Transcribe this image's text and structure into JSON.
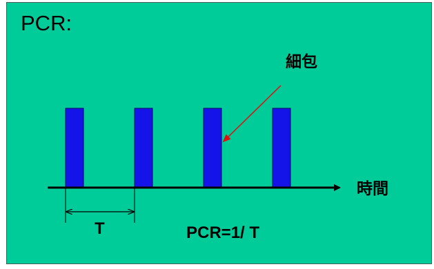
{
  "title": "PCR:",
  "cell_label": "細包",
  "time_axis_label": "時間",
  "period_label": "T",
  "formula": "PCR=1/ T",
  "colors": {
    "background": "#00cc99",
    "pulse_fill": "#1414e8",
    "pulse_stroke": "#0a0a60",
    "arrow": "#e01010",
    "axis": "#000000"
  }
}
